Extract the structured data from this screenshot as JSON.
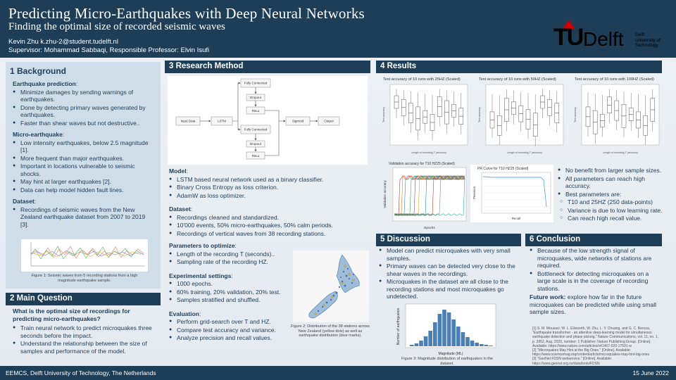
{
  "header": {
    "title": "Predicting Micro-Earthquakes with Deep Neural Networks",
    "subtitle": "Finding the optimal size of recorded seismic waves",
    "authors": "Kevin Zhu   k.zhu-2@student.tudelft.nl",
    "supervisor": "Supervisor: Mohammad Sabbaqi, Responsible Professor: Elvin Isufi",
    "logo_tu": "TU",
    "logo_delft": "Delft",
    "logo_lines": [
      "Delft",
      "University of",
      "Technology"
    ]
  },
  "background": {
    "heading": "1 Background",
    "prediction_title": "Earthquake prediction",
    "prediction_items": [
      "Minimize damages by sending warnings of earthquakes.",
      "Done by detecting primary waves generated by earthquakes.",
      "Faster than shear waves but not destructive.."
    ],
    "micro_title": "Micro-earthquake",
    "micro_items": [
      "Low intensity earthquakes, below 2.5 magnitude [1].",
      "More frequent than major earthquakes.",
      "Important in locations vulnerable to seismic shocks.",
      "May hint at larger earthquakes [2].",
      "Data can help model hidden fault lines."
    ],
    "dataset_title": "Dataset",
    "dataset_items": [
      "Recordings of seismic waves from the New Zealand earthquake dataset from 2007 to 2019 [3]."
    ],
    "fig1_caption": "Figure 1: Seismic waves from 5 recording stations from a high magnitude earthquake sample."
  },
  "question": {
    "heading": "2 Main Question",
    "question": "What is the optimal size of recordings for predicting micro-earthquakes?",
    "items": [
      "Train neural network to predict microquakes three seconds before the impact.",
      "Understand the relationship between the size of samples and performance of the model."
    ]
  },
  "method": {
    "heading": "3 Research Method",
    "diagram": {
      "fully1": "Fully Connected",
      "dropout1": "Dropout",
      "relu1": "ReLu",
      "fully2": "Fully Connected",
      "dropout2": "Dropout",
      "relu2": "ReLu",
      "input": "Input Data",
      "lstm": "LSTM",
      "sigmoid": "Sigmoid",
      "output": "Output"
    },
    "model_title": "Model",
    "model_items": [
      "LSTM based neural network used as a binary classifier.",
      "Binary Cross Entropy as loss criterion.",
      "AdamW as loss optimizer."
    ],
    "dataset_title": "Dataset",
    "dataset_items": [
      "Recordings cleaned and standardized.",
      "10'000 events, 50% micro-earthquakes, 50% calm periods.",
      "Recordings of vertical waves from 38 recording stations."
    ],
    "params_title": "Parameters to optimize",
    "params_items": [
      "Length of the recording T (seconds)..",
      "Sampling rate of the recording HZ."
    ],
    "exp_title": "Experimental settings",
    "exp_items": [
      "1000 epochs.",
      "60% training, 20% validation, 20% test.",
      "Samples stratified and shuffled."
    ],
    "eval_title": "Evaluation",
    "eval_items": [
      "Perform grid-search over T and HZ.",
      "Compare test accuracy and variance.",
      "Analyze precision and recall values."
    ],
    "fig2_caption": "Figure 2: Distribution of the 38 stations across New Zealand (yellow dots) as well as earthquake distribution (blue marks)."
  },
  "results": {
    "heading": "4 Results",
    "box_titles": [
      "Test accuracy of 10 runs with 25HZ (Scaled)",
      "Test accuracy of 10 runs with 50HZ (Scaled)",
      "Test accuracy of 10 runs with 100HZ (Scaled)"
    ],
    "box_ylabel": "Test accuracy",
    "box_xlabel": "Length of recording T (seconds)",
    "val_title": "Validation accuracy for T10 HZ25 (Scaled)",
    "val_xlabel": "Epochs",
    "val_ylabel": "Validation accuracy",
    "pr_title": "PR Curve for T10 HZ25 (Scaled)",
    "pr_xlabel": "Recall",
    "pr_ylabel": "Precision",
    "items": [
      "No benefit from larger sample sizes.",
      "All parameters can reach high accuracy.",
      "Best parameters are:"
    ],
    "sub_items": [
      "T10 and 25HZ (250 data-points)",
      "Variance is due to low learning rate.",
      "Can reach high recall value."
    ]
  },
  "discussion": {
    "heading": "5 Discussion",
    "items": [
      "Model can predict microquakes with very small samples.",
      "Primary waves can be detected very close to the shear waves in the recordings.",
      "Microquakes in the dataset are all close to the recording stations and most microquakes go undetected."
    ],
    "hist_ylabel": "Number of earthquakes",
    "hist_xlabel": "Magnitude (ML)",
    "fig3_caption": "Figure 3: Magnitude distribution of earthquakes in the dataset."
  },
  "conclusion": {
    "heading": "6 Conclusion",
    "items": [
      "Because of the low strength signal of microquakes, wide networks of stations are required.",
      "Bottleneck for detecting microquakes on a large scale is in the coverage of recording stations."
    ],
    "future_label": "Future work:",
    "future_text": " explore how far in the future microquakes can be predicted while using small sample sizes.",
    "references": [
      "[1] S. M. Mousavi, W. L. Ellsworth, W. Zhu, L. Y. Chuang, and G. C. Beroza, \"Earthquake transformer - an attentive deep-learning model for simultaneous earthquake detection and phase picking,\" Nature Communications, vol. 11, no. 1, p. 3952, Aug. 2020, number: 1 Publisher: Nature Publishing Group. [Online]. Available: https://www.nature.com/articles/s41467-020-17591-w",
      "[2] \"Microquakes May Hint at the Big Ones.\" [Online]. Available: https://www.sciencemag.org/content/article/microquakes-may-hint-big-ones",
      "[3] \"GeoNet FDSN webservice.\" [Online]. Available: https://www.geonet.org.nz/data/tools/FDSN"
    ]
  },
  "footer": {
    "left": "EEMCS, Delft University of Technology, The Netherlands",
    "right": "15 June 2022"
  }
}
